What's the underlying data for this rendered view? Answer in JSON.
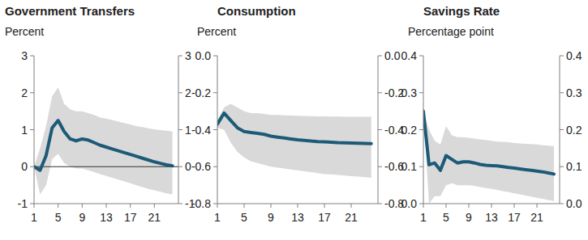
{
  "chart_data": [
    {
      "type": "line",
      "title": "Government Transfers",
      "subtitle": "Percent",
      "x": [
        1,
        2,
        3,
        4,
        5,
        6,
        7,
        8,
        9,
        10,
        11,
        12,
        13,
        14,
        15,
        16,
        17,
        18,
        19,
        20,
        21,
        22,
        23,
        24
      ],
      "xlim": [
        1,
        25
      ],
      "xticks": [
        1,
        5,
        9,
        13,
        17,
        21
      ],
      "ylim": [
        -1,
        3
      ],
      "yticks": [
        -1,
        0,
        1,
        2,
        3
      ],
      "y2lim": [
        -1,
        3
      ],
      "y2ticks": [
        -1,
        0,
        1,
        2,
        3
      ],
      "series": [
        {
          "color": "#1d5a78",
          "values": [
            0,
            -0.1,
            0.3,
            1.05,
            1.25,
            0.95,
            0.75,
            0.7,
            0.75,
            0.72,
            0.65,
            0.58,
            0.53,
            0.48,
            0.43,
            0.38,
            0.33,
            0.28,
            0.23,
            0.18,
            0.13,
            0.09,
            0.05,
            0.02
          ]
        }
      ],
      "band": {
        "lower": [
          0,
          -0.75,
          -0.5,
          0.2,
          0.35,
          0.1,
          0,
          -0.05,
          -0.05,
          -0.1,
          -0.15,
          -0.2,
          -0.25,
          -0.3,
          -0.35,
          -0.4,
          -0.45,
          -0.5,
          -0.55,
          -0.6,
          -0.64,
          -0.68,
          -0.72,
          -0.75
        ],
        "upper": [
          0,
          0.5,
          1.1,
          1.9,
          2.15,
          1.7,
          1.55,
          1.5,
          1.5,
          1.45,
          1.4,
          1.33,
          1.3,
          1.26,
          1.22,
          1.18,
          1.14,
          1.1,
          1.07,
          1.04,
          1.01,
          0.99,
          0.97,
          0.95
        ]
      }
    },
    {
      "type": "line",
      "title": "Consumption",
      "subtitle": "Percent",
      "x": [
        1,
        2,
        3,
        4,
        5,
        6,
        7,
        8,
        9,
        10,
        11,
        12,
        13,
        14,
        15,
        16,
        17,
        18,
        19,
        20,
        21,
        22,
        23,
        24
      ],
      "xlim": [
        1,
        25
      ],
      "xticks": [
        1,
        5,
        9,
        13,
        17,
        21
      ],
      "ylim": [
        -0.8,
        0
      ],
      "yticks": [
        -0.8,
        -0.6,
        -0.4,
        -0.2,
        {
          "value": 0,
          "label": "0.0"
        }
      ],
      "y2lim": [
        -0.8,
        0
      ],
      "y2ticks": [
        -0.8,
        -0.6,
        -0.4,
        -0.2,
        {
          "value": 0,
          "label": "0.0"
        }
      ],
      "series": [
        {
          "color": "#1d5a78",
          "values": [
            -0.37,
            -0.31,
            -0.35,
            -0.39,
            -0.41,
            -0.415,
            -0.42,
            -0.425,
            -0.435,
            -0.44,
            -0.445,
            -0.45,
            -0.455,
            -0.458,
            -0.461,
            -0.464,
            -0.466,
            -0.468,
            -0.47,
            -0.471,
            -0.472,
            -0.473,
            -0.474,
            -0.475
          ]
        }
      ],
      "band": {
        "lower": [
          -0.39,
          -0.4,
          -0.47,
          -0.52,
          -0.55,
          -0.57,
          -0.58,
          -0.59,
          -0.6,
          -0.605,
          -0.61,
          -0.615,
          -0.62,
          -0.625,
          -0.63,
          -0.635,
          -0.64,
          -0.642,
          -0.645,
          -0.648,
          -0.651,
          -0.654,
          -0.657,
          -0.66
        ],
        "upper": [
          -0.35,
          -0.28,
          -0.26,
          -0.28,
          -0.3,
          -0.31,
          -0.31,
          -0.315,
          -0.32,
          -0.32,
          -0.322,
          -0.324,
          -0.325,
          -0.326,
          -0.327,
          -0.328,
          -0.328,
          -0.329,
          -0.329,
          -0.33,
          -0.33,
          -0.33,
          -0.33,
          -0.33
        ]
      }
    },
    {
      "type": "line",
      "title": "Savings Rate",
      "subtitle": "Percentage point",
      "x": [
        1,
        2,
        3,
        4,
        5,
        6,
        7,
        8,
        9,
        10,
        11,
        12,
        13,
        14,
        15,
        16,
        17,
        18,
        19,
        20,
        21,
        22,
        23,
        24
      ],
      "xlim": [
        1,
        25
      ],
      "xticks": [
        1,
        5,
        9,
        13,
        17,
        21
      ],
      "ylim": [
        0,
        0.4
      ],
      "yticks": [
        {
          "value": 0,
          "label": "0.0"
        },
        0.1,
        0.2,
        0.3,
        0.4
      ],
      "y2lim": [
        0,
        0.4
      ],
      "y2ticks": [
        {
          "value": 0,
          "label": "0.0"
        },
        0.1,
        0.2,
        0.3,
        0.4
      ],
      "series": [
        {
          "color": "#1d5a78",
          "values": [
            0.25,
            0.105,
            0.11,
            0.09,
            0.13,
            0.12,
            0.11,
            0.113,
            0.113,
            0.11,
            0.106,
            0.104,
            0.103,
            0.102,
            0.1,
            0.098,
            0.096,
            0.094,
            0.092,
            0.09,
            0.088,
            0.086,
            0.083,
            0.08
          ]
        }
      ],
      "band": {
        "lower": [
          0.25,
          0.0,
          0.02,
          0.02,
          0.05,
          0.055,
          0.05,
          0.05,
          0.05,
          0.048,
          0.045,
          0.042,
          0.04,
          0.037,
          0.034,
          0.031,
          0.028,
          0.025,
          0.022,
          0.019,
          0.016,
          0.013,
          0.01,
          0.007
        ],
        "upper": [
          0.25,
          0.2,
          0.17,
          0.16,
          0.21,
          0.185,
          0.18,
          0.18,
          0.178,
          0.176,
          0.174,
          0.172,
          0.17,
          0.168,
          0.167,
          0.166,
          0.164,
          0.163,
          0.162,
          0.161,
          0.16,
          0.158,
          0.157,
          0.155
        ]
      }
    }
  ]
}
